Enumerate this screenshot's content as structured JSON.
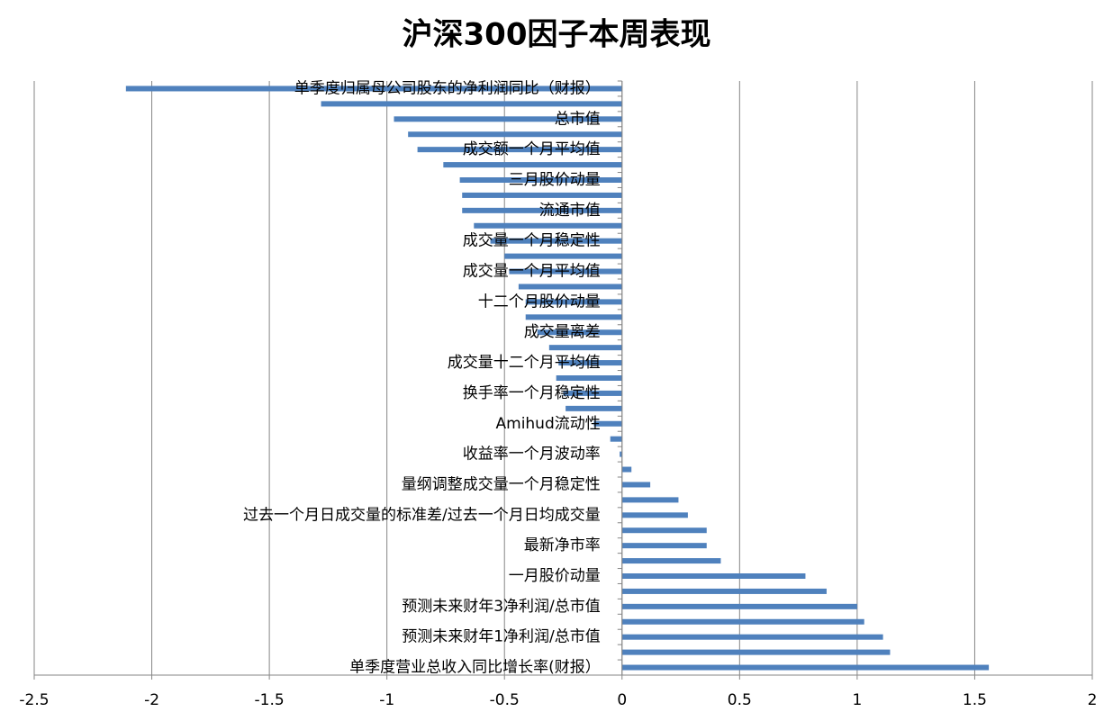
{
  "chart_data": {
    "type": "hbar",
    "title": "沪深300因子本周表现",
    "categories": [
      "单季度归属母公司股东的净利润同比（财报）",
      null,
      "总市值",
      null,
      "成交额一个月平均值",
      null,
      "三月股价动量",
      null,
      "流通市值",
      null,
      "成交量一个月稳定性",
      null,
      "成交量一个月平均值",
      null,
      "十二个月股价动量",
      null,
      "成交量离差",
      null,
      "成交量十二个月平均值",
      null,
      "换手率一个月稳定性",
      null,
      "Amihud流动性",
      null,
      "收益率一个月波动率",
      null,
      "量纲调整成交量一个月稳定性",
      null,
      "过去一个月日成交量的标准差/过去一个月日均成交量",
      null,
      "最新净市率",
      null,
      "一月股价动量",
      null,
      "预测未来财年3净利润/总市值",
      null,
      "预测未来财年1净利润/总市值",
      null,
      "单季度营业总收入同比增长率(财报）"
    ],
    "values": [
      -2.11,
      -1.28,
      -0.97,
      -0.91,
      -0.87,
      -0.76,
      -0.69,
      -0.68,
      -0.68,
      -0.63,
      -0.56,
      -0.5,
      -0.48,
      -0.44,
      -0.41,
      -0.41,
      -0.36,
      -0.31,
      -0.27,
      -0.28,
      -0.25,
      -0.24,
      -0.12,
      -0.05,
      -0.01,
      0.04,
      0.12,
      0.24,
      0.28,
      0.36,
      0.36,
      0.42,
      0.78,
      0.87,
      1.0,
      1.03,
      1.11,
      1.14,
      1.56
    ],
    "color": "#4f81bd",
    "xlim": [
      -2.5,
      2
    ],
    "xticks": [
      -2.5,
      -2,
      -1.5,
      -1,
      -0.5,
      0,
      0.5,
      1,
      1.5,
      2
    ],
    "grid": true
  }
}
